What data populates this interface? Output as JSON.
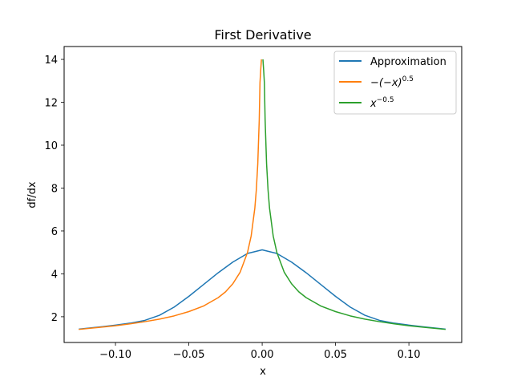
{
  "chart_data": {
    "type": "line",
    "title": "First Derivative",
    "xlabel": "x",
    "ylabel": "df/dx",
    "xlim": [
      -0.135,
      0.136
    ],
    "ylim": [
      0.8,
      14.6
    ],
    "xticks": [
      -0.1,
      -0.05,
      0.0,
      0.05,
      0.1
    ],
    "xtick_labels": [
      "−0.10",
      "−0.05",
      "0.00",
      "0.05",
      "0.10"
    ],
    "yticks": [
      2,
      4,
      6,
      8,
      10,
      12,
      14
    ],
    "ytick_labels": [
      "2",
      "4",
      "6",
      "8",
      "10",
      "12",
      "14"
    ],
    "grid": false,
    "legend_position": "top-right",
    "series": [
      {
        "name": "Approximation",
        "color": "#1f77b4",
        "x": [
          -0.125,
          -0.11,
          -0.1,
          -0.09,
          -0.08,
          -0.07,
          -0.06,
          -0.05,
          -0.04,
          -0.03,
          -0.02,
          -0.01,
          0.0,
          0.01,
          0.02,
          0.03,
          0.04,
          0.05,
          0.06,
          0.07,
          0.08,
          0.09,
          0.1,
          0.11,
          0.125
        ],
        "y": [
          1.42,
          1.53,
          1.61,
          1.7,
          1.83,
          2.07,
          2.45,
          2.95,
          3.5,
          4.05,
          4.55,
          4.95,
          5.12,
          4.95,
          4.55,
          4.05,
          3.5,
          2.95,
          2.45,
          2.07,
          1.83,
          1.7,
          1.61,
          1.53,
          1.42
        ]
      },
      {
        "name": "−(−x)^0.5",
        "label_base": "−(−x)",
        "label_exp": "0.5",
        "color": "#ff7f0e",
        "x": [
          -0.125,
          -0.11,
          -0.1,
          -0.09,
          -0.08,
          -0.07,
          -0.06,
          -0.05,
          -0.04,
          -0.03,
          -0.025,
          -0.02,
          -0.015,
          -0.01,
          -0.0075,
          -0.005,
          -0.004,
          -0.003,
          -0.002,
          -0.0015,
          -0.001,
          -0.0007,
          -0.0005
        ],
        "y": [
          1.41,
          1.51,
          1.58,
          1.67,
          1.77,
          1.89,
          2.04,
          2.24,
          2.5,
          2.89,
          3.16,
          3.54,
          4.08,
          5.0,
          5.77,
          7.07,
          7.91,
          9.13,
          11.18,
          12.91,
          13.5,
          13.8,
          14.0
        ]
      },
      {
        "name": "x^−0.5",
        "label_base": "x",
        "label_exp": "−0.5",
        "color": "#2ca02c",
        "x": [
          0.0005,
          0.0007,
          0.001,
          0.0015,
          0.002,
          0.003,
          0.004,
          0.005,
          0.0075,
          0.01,
          0.015,
          0.02,
          0.025,
          0.03,
          0.04,
          0.05,
          0.06,
          0.07,
          0.08,
          0.09,
          0.1,
          0.11,
          0.125
        ],
        "y": [
          14.0,
          13.8,
          13.5,
          12.91,
          11.18,
          9.13,
          7.91,
          7.07,
          5.77,
          5.0,
          4.08,
          3.54,
          3.16,
          2.89,
          2.5,
          2.24,
          2.04,
          1.89,
          1.77,
          1.67,
          1.58,
          1.51,
          1.41
        ]
      }
    ]
  }
}
